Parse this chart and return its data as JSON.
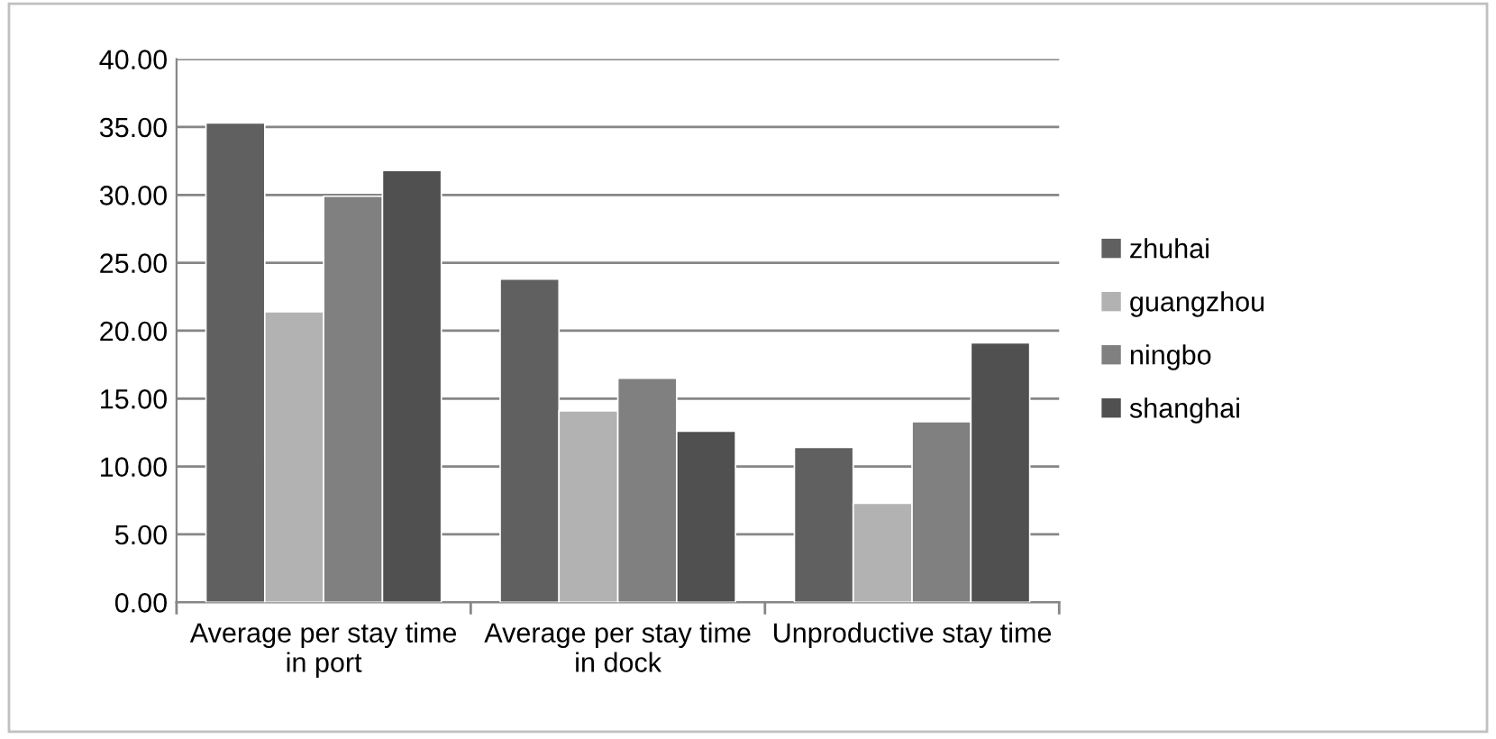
{
  "chart_data": {
    "type": "bar",
    "categories": [
      "Average per stay time in port",
      "Average per stay time in dock",
      "Unproductive stay time"
    ],
    "series": [
      {
        "name": "zhuhai",
        "color": "#606060",
        "values": [
          35.3,
          23.8,
          11.4
        ]
      },
      {
        "name": "guangzhou",
        "color": "#b2b2b2",
        "values": [
          21.4,
          14.1,
          7.3
        ]
      },
      {
        "name": "ningbo",
        "color": "#808080",
        "values": [
          29.9,
          16.5,
          13.3
        ]
      },
      {
        "name": "shanghai",
        "color": "#505050",
        "values": [
          31.8,
          12.6,
          19.1
        ]
      }
    ],
    "ylim": [
      0,
      40
    ],
    "yticks": [
      {
        "value": 0,
        "label": "0.00"
      },
      {
        "value": 5,
        "label": "5.00"
      },
      {
        "value": 10,
        "label": "10.00"
      },
      {
        "value": 15,
        "label": "15.00"
      },
      {
        "value": 20,
        "label": "20.00"
      },
      {
        "value": 25,
        "label": "25.00"
      },
      {
        "value": 30,
        "label": "30.00"
      },
      {
        "value": 35,
        "label": "35.00"
      },
      {
        "value": 40,
        "label": "40.00"
      }
    ],
    "grid": "y",
    "legend": "right"
  }
}
